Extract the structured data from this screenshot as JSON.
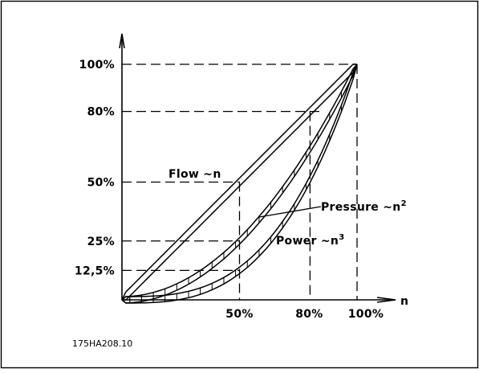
{
  "figure": {
    "code": "175HA208.10",
    "y_axis": {
      "ticks": [
        {
          "value": 100,
          "label": "100%"
        },
        {
          "value": 80,
          "label": "80%"
        },
        {
          "value": 50,
          "label": "50%"
        },
        {
          "value": 25,
          "label": "25%"
        },
        {
          "value": 12.5,
          "label": "12,5%"
        }
      ]
    },
    "x_axis": {
      "label": "n",
      "ticks": [
        {
          "value": 50,
          "label": "50%"
        },
        {
          "value": 80,
          "label": "80%"
        },
        {
          "value": 100,
          "label": "100%"
        }
      ]
    },
    "curves": {
      "flow": {
        "label": "Flow ~n",
        "exponent": 1
      },
      "pressure": {
        "label": "Pressure ~n",
        "exponent": 2,
        "superscript": "2"
      },
      "power": {
        "label": "Power ~n",
        "exponent": 3,
        "superscript": "3"
      }
    },
    "line_color": "#000000",
    "background": "#ffffff"
  }
}
